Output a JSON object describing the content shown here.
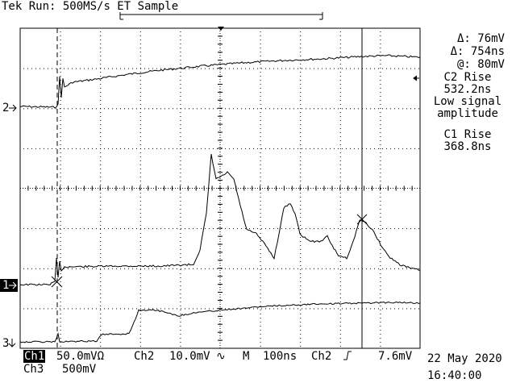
{
  "header": {
    "brand": "Tek",
    "status": "Run: 500MS/s ET Sample"
  },
  "readout": {
    "delta_v": "Δ: 76mV",
    "delta_t": "Δ: 754ns",
    "at": "@: 80mV",
    "meas1_title": "C2 Rise",
    "meas1_value": "532.2ns",
    "meas1_note_line1": "Low signal",
    "meas1_note_line2": "amplitude",
    "meas2_title": "C1 Rise",
    "meas2_value": "368.8ns"
  },
  "channel_markers": {
    "ch2": "2",
    "ch1": "1",
    "ch3": "3"
  },
  "bottom": {
    "ch1_label": "Ch1",
    "ch1_scale": "50.0mVΩ",
    "ch2_label": "Ch2",
    "ch2_scale": "10.0mV",
    "timebase_label": "M",
    "timebase_value": "100ns",
    "trigger_source": "Ch2",
    "trigger_level": "7.6mV",
    "ch3_label": "Ch3",
    "ch3_scale": "500mV",
    "date": "22 May 2020",
    "time": "16:40:00"
  },
  "colors": {
    "trace": "#000000",
    "background": "#ffffff",
    "graticule": "#000000"
  }
}
